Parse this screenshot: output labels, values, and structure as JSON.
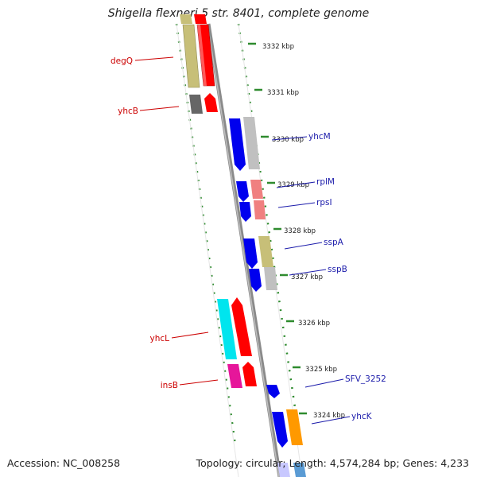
{
  "title": "Shigella flexneri 5 str. 8401, complete genome",
  "footer": {
    "accession": "Accession: NC_008258",
    "summary": "Topology: circular; Length: 4,574,284 bp; Genes: 4,233"
  },
  "ticks": [
    "3332 kbp",
    "3331 kbp",
    "3330 kbp",
    "3329 kbp",
    "3328 kbp",
    "3327 kbp",
    "3326 kbp",
    "3325 kbp",
    "3324 kbp"
  ],
  "gene_labels": [
    {
      "text": "degQ",
      "color": "#cc0000"
    },
    {
      "text": "yhcB",
      "color": "#cc0000"
    },
    {
      "text": "yhcM",
      "color": "#1a1aaa"
    },
    {
      "text": "rplM",
      "color": "#1a1aaa"
    },
    {
      "text": "rpsI",
      "color": "#1a1aaa"
    },
    {
      "text": "sspA",
      "color": "#1a1aaa"
    },
    {
      "text": "sspB",
      "color": "#1a1aaa"
    },
    {
      "text": "yhcL",
      "color": "#cc0000"
    },
    {
      "text": "insB",
      "color": "#cc0000"
    },
    {
      "text": "SFV_3252",
      "color": "#1a1aaa"
    },
    {
      "text": "yhcK",
      "color": "#1a1aaa"
    }
  ],
  "colors": {
    "backbone": "#8a8a8a",
    "dots": "#2e8b2e",
    "tan": "#c7bf78",
    "red": "#ff0000",
    "blue": "#0000ee",
    "gray": "#c0c0c0",
    "darkgray": "#666666",
    "pink": "#f08080",
    "cyan": "#00e5ee",
    "magenta": "#e6169a",
    "orange": "#ff9900"
  }
}
